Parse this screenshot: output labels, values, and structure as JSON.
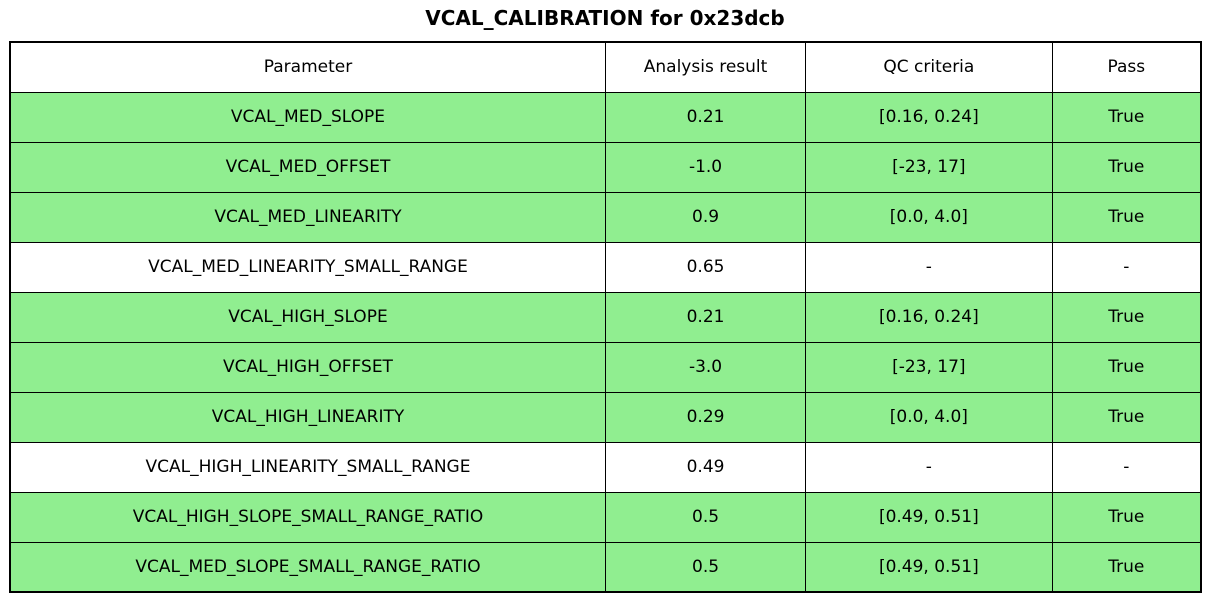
{
  "title": "VCAL_CALIBRATION for 0x23dcb",
  "colors": {
    "pass_row_bg": "#90EE90",
    "neutral_row_bg": "#FFFFFF",
    "border": "#000000",
    "text": "#000000"
  },
  "table": {
    "headers": [
      "Parameter",
      "Analysis result",
      "QC criteria",
      "Pass"
    ],
    "rows": [
      {
        "parameter": "VCAL_MED_SLOPE",
        "analysis_result": "0.21",
        "qc_criteria": "[0.16, 0.24]",
        "pass": "True",
        "highlighted": true
      },
      {
        "parameter": "VCAL_MED_OFFSET",
        "analysis_result": "-1.0",
        "qc_criteria": "[-23, 17]",
        "pass": "True",
        "highlighted": true
      },
      {
        "parameter": "VCAL_MED_LINEARITY",
        "analysis_result": "0.9",
        "qc_criteria": "[0.0, 4.0]",
        "pass": "True",
        "highlighted": true
      },
      {
        "parameter": "VCAL_MED_LINEARITY_SMALL_RANGE",
        "analysis_result": "0.65",
        "qc_criteria": "-",
        "pass": "-",
        "highlighted": false
      },
      {
        "parameter": "VCAL_HIGH_SLOPE",
        "analysis_result": "0.21",
        "qc_criteria": "[0.16, 0.24]",
        "pass": "True",
        "highlighted": true
      },
      {
        "parameter": "VCAL_HIGH_OFFSET",
        "analysis_result": "-3.0",
        "qc_criteria": "[-23, 17]",
        "pass": "True",
        "highlighted": true
      },
      {
        "parameter": "VCAL_HIGH_LINEARITY",
        "analysis_result": "0.29",
        "qc_criteria": "[0.0, 4.0]",
        "pass": "True",
        "highlighted": true
      },
      {
        "parameter": "VCAL_HIGH_LINEARITY_SMALL_RANGE",
        "analysis_result": "0.49",
        "qc_criteria": "-",
        "pass": "-",
        "highlighted": false
      },
      {
        "parameter": "VCAL_HIGH_SLOPE_SMALL_RANGE_RATIO",
        "analysis_result": "0.5",
        "qc_criteria": "[0.49, 0.51]",
        "pass": "True",
        "highlighted": true
      },
      {
        "parameter": "VCAL_MED_SLOPE_SMALL_RANGE_RATIO",
        "analysis_result": "0.5",
        "qc_criteria": "[0.49, 0.51]",
        "pass": "True",
        "highlighted": true
      }
    ]
  },
  "chart_data": {
    "type": "table",
    "title": "VCAL_CALIBRATION for 0x23dcb",
    "columns": [
      "Parameter",
      "Analysis result",
      "QC criteria",
      "Pass"
    ],
    "rows": [
      [
        "VCAL_MED_SLOPE",
        "0.21",
        "[0.16, 0.24]",
        "True"
      ],
      [
        "VCAL_MED_OFFSET",
        "-1.0",
        "[-23, 17]",
        "True"
      ],
      [
        "VCAL_MED_LINEARITY",
        "0.9",
        "[0.0, 4.0]",
        "True"
      ],
      [
        "VCAL_MED_LINEARITY_SMALL_RANGE",
        "0.65",
        "-",
        "-"
      ],
      [
        "VCAL_HIGH_SLOPE",
        "0.21",
        "[0.16, 0.24]",
        "True"
      ],
      [
        "VCAL_HIGH_OFFSET",
        "-3.0",
        "[-23, 17]",
        "True"
      ],
      [
        "VCAL_HIGH_LINEARITY",
        "0.29",
        "[0.0, 4.0]",
        "True"
      ],
      [
        "VCAL_HIGH_LINEARITY_SMALL_RANGE",
        "0.49",
        "-",
        "-"
      ],
      [
        "VCAL_HIGH_SLOPE_SMALL_RANGE_RATIO",
        "0.5",
        "[0.49, 0.51]",
        "True"
      ],
      [
        "VCAL_MED_SLOPE_SMALL_RANGE_RATIO",
        "0.5",
        "[0.49, 0.51]",
        "True"
      ]
    ],
    "layout_hints": {
      "row_highlight_color": "#90EE90",
      "highlighted_rows_are_passing": true,
      "grid": true,
      "text_align": "center"
    }
  }
}
